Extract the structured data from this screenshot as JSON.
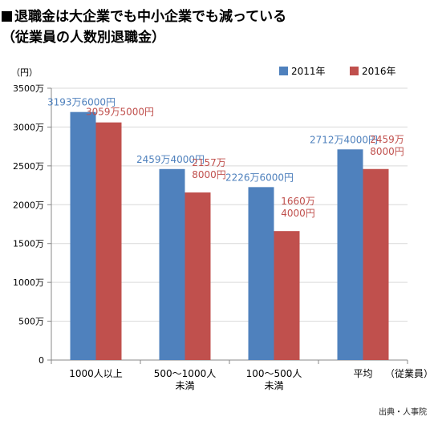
{
  "header": {
    "title_marker": "■",
    "title_line1": "退職金は大企業でも中小企業でも減っている",
    "title_line2": "（従業員の人数別退職金）"
  },
  "source": "出典・人事院",
  "colors": {
    "series_2011": "#4f81bd",
    "series_2016": "#c0504d",
    "axis": "#888888",
    "grid": "#d9d9d9"
  },
  "chart_data": {
    "type": "bar",
    "y_unit_label": "（円）",
    "x_unit_label": "（従業員）",
    "ylim": [
      0,
      3500
    ],
    "yticks": [
      0,
      500,
      1000,
      1500,
      2000,
      2500,
      3000,
      3500
    ],
    "ytick_labels": [
      "0",
      "500万",
      "1000万",
      "1500万",
      "2000万",
      "2500万",
      "3000万",
      "3500万"
    ],
    "grid": true,
    "legend_position": "top-right",
    "categories": [
      [
        "1000人以上"
      ],
      [
        "500〜1000人",
        "未満"
      ],
      [
        "100〜500人",
        "未満"
      ],
      [
        "平均"
      ]
    ],
    "series": [
      {
        "name": "2011年",
        "values": [
          3193.6,
          2459.4,
          2226.6,
          2712.4
        ],
        "labels": [
          [
            "3193万6000円"
          ],
          [
            "2459万4000円"
          ],
          [
            "2226万6000円"
          ],
          [
            "2712万4000円"
          ]
        ]
      },
      {
        "name": "2016年",
        "values": [
          3059.5,
          2157.8,
          1660.4,
          2459.8
        ],
        "labels": [
          [
            "3059万5000円"
          ],
          [
            "2157万",
            "8000円"
          ],
          [
            "1660万",
            "4000円"
          ],
          [
            "2459万",
            "8000円"
          ]
        ]
      }
    ]
  }
}
